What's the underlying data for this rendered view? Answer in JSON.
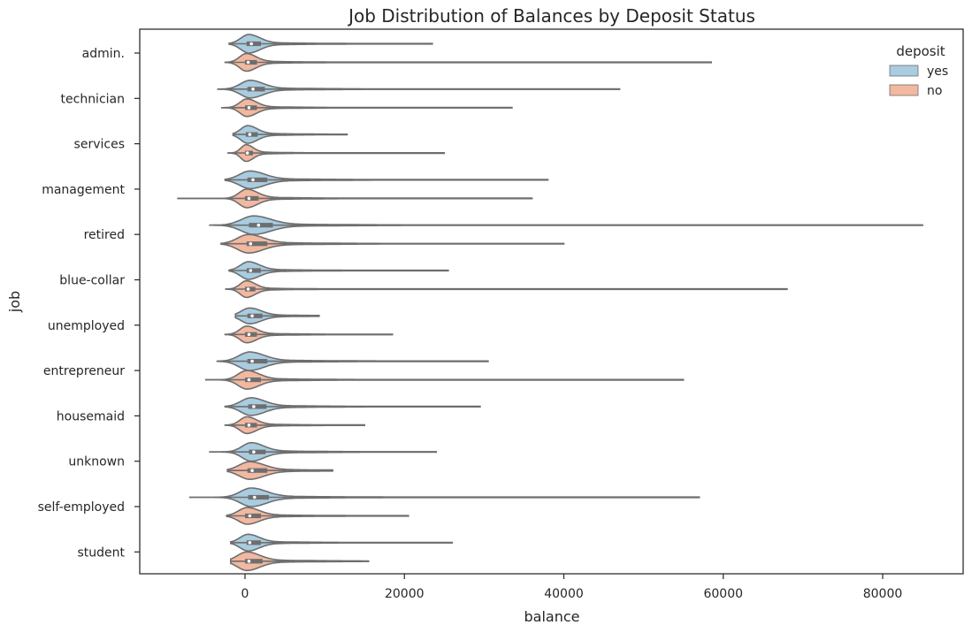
{
  "chart_data": {
    "type": "violin",
    "orientation": "horizontal",
    "title": "Job Distribution of Balances by Deposit Status",
    "xlabel": "balance",
    "ylabel": "job",
    "xlim": [
      -13000,
      90000
    ],
    "xticks": [
      0,
      20000,
      40000,
      60000,
      80000
    ],
    "categories": [
      "admin.",
      "technician",
      "services",
      "management",
      "retired",
      "blue-collar",
      "unemployed",
      "entrepreneur",
      "housemaid",
      "unknown",
      "self-employed",
      "student"
    ],
    "legend": {
      "title": "deposit",
      "position": "top-right"
    },
    "series": [
      {
        "name": "yes",
        "color": "#a9cce0",
        "stats": [
          {
            "min": -2000,
            "q1": 200,
            "median": 800,
            "q3": 2000,
            "max": 23500,
            "width": 1.0
          },
          {
            "min": -3500,
            "q1": 300,
            "median": 1000,
            "q3": 2500,
            "max": 47000,
            "width": 0.95
          },
          {
            "min": -1500,
            "q1": 100,
            "median": 600,
            "q3": 1600,
            "max": 12800,
            "width": 0.95
          },
          {
            "min": -2500,
            "q1": 300,
            "median": 1000,
            "q3": 2800,
            "max": 38000,
            "width": 0.95
          },
          {
            "min": -4500,
            "q1": 500,
            "median": 1700,
            "q3": 3500,
            "max": 85000,
            "width": 1.0
          },
          {
            "min": -2000,
            "q1": 200,
            "median": 700,
            "q3": 2000,
            "max": 25500,
            "width": 0.95
          },
          {
            "min": -1200,
            "q1": 300,
            "median": 900,
            "q3": 2200,
            "max": 9300,
            "width": 0.85
          },
          {
            "min": -3500,
            "q1": 300,
            "median": 900,
            "q3": 2800,
            "max": 30500,
            "width": 1.0
          },
          {
            "min": -2500,
            "q1": 400,
            "median": 1100,
            "q3": 2700,
            "max": 29500,
            "width": 0.95
          },
          {
            "min": -4500,
            "q1": 500,
            "median": 1100,
            "q3": 2600,
            "max": 24000,
            "width": 1.0
          },
          {
            "min": -7000,
            "q1": 400,
            "median": 1200,
            "q3": 3000,
            "max": 57000,
            "width": 1.0
          },
          {
            "min": -1800,
            "q1": 200,
            "median": 600,
            "q3": 2000,
            "max": 26000,
            "width": 0.9
          }
        ]
      },
      {
        "name": "no",
        "color": "#f2b8a0",
        "stats": [
          {
            "min": -2500,
            "q1": 0,
            "median": 400,
            "q3": 1500,
            "max": 58500,
            "width": 0.95
          },
          {
            "min": -3000,
            "q1": 0,
            "median": 500,
            "q3": 1500,
            "max": 33500,
            "width": 0.95
          },
          {
            "min": -2200,
            "q1": 0,
            "median": 300,
            "q3": 1000,
            "max": 25000,
            "width": 0.9
          },
          {
            "min": -8500,
            "q1": 0,
            "median": 500,
            "q3": 1700,
            "max": 36000,
            "width": 1.0
          },
          {
            "min": -3000,
            "q1": 200,
            "median": 700,
            "q3": 2800,
            "max": 40000,
            "width": 1.0
          },
          {
            "min": -2500,
            "q1": 0,
            "median": 400,
            "q3": 1300,
            "max": 68000,
            "width": 0.9
          },
          {
            "min": -2500,
            "q1": 0,
            "median": 500,
            "q3": 1500,
            "max": 18500,
            "width": 0.9
          },
          {
            "min": -5000,
            "q1": 0,
            "median": 500,
            "q3": 2000,
            "max": 55000,
            "width": 1.0
          },
          {
            "min": -2500,
            "q1": 0,
            "median": 500,
            "q3": 1500,
            "max": 15000,
            "width": 0.9
          },
          {
            "min": -2200,
            "q1": 300,
            "median": 900,
            "q3": 2800,
            "max": 11000,
            "width": 0.95
          },
          {
            "min": -2300,
            "q1": 0,
            "median": 600,
            "q3": 2000,
            "max": 20500,
            "width": 0.9
          },
          {
            "min": -1800,
            "q1": 0,
            "median": 500,
            "q3": 2200,
            "max": 15500,
            "width": 1.0
          }
        ]
      }
    ]
  }
}
